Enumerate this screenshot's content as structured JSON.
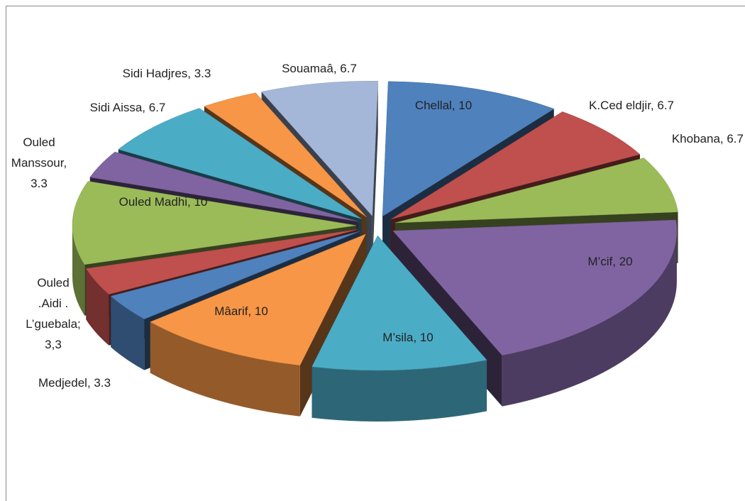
{
  "chart_data": {
    "type": "pie",
    "style": "3d-exploded",
    "labels": [
      "Chellal, 10",
      "K.Ced eldjir, 6.7",
      "Khobana, 6.7",
      "M’cif, 20",
      "M’sila, 10",
      "Mâarif, 10",
      "Medjedel, 3.3",
      "Ouled\n.Aidi .\nL’guebala;\n3,3",
      "Ouled Madhi, 10",
      "Ouled\nManssour,\n3.3",
      "Sidi Aissa, 6.7",
      "Sidi Hadjres, 3.3",
      "Souamaâ, 6.7"
    ],
    "values": [
      10,
      6.7,
      6.7,
      20,
      10,
      10,
      3.3,
      3.3,
      10,
      3.3,
      6.7,
      3.3,
      6.7
    ],
    "colors": [
      "#4f81bd",
      "#c0504d",
      "#9bbb59",
      "#8064a2",
      "#4bacc6",
      "#f79646",
      "#4f81bd",
      "#c0504d",
      "#9bbb59",
      "#8064a2",
      "#4bacc6",
      "#f79646",
      "#a5b7d8"
    ]
  }
}
